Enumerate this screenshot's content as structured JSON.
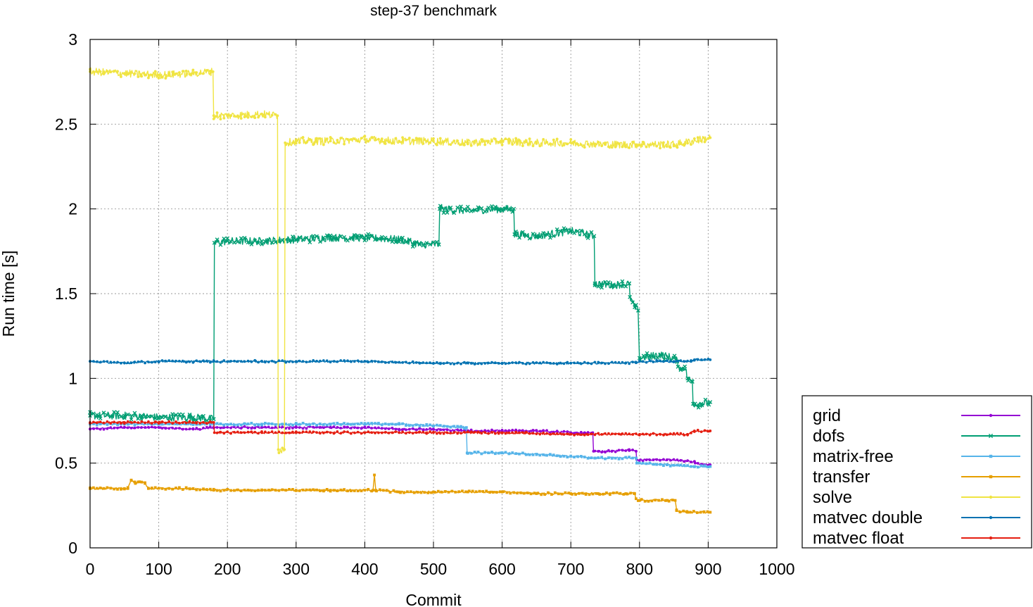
{
  "chart_data": {
    "type": "line",
    "title": "step-37 benchmark",
    "xlabel": "Commit",
    "ylabel": "Run time [s]",
    "xlim": [
      0,
      1000
    ],
    "ylim": [
      0,
      3
    ],
    "x_ticks": [
      "0",
      "100",
      "200",
      "300",
      "400",
      "500",
      "600",
      "700",
      "800",
      "900",
      "1000"
    ],
    "y_ticks": [
      "0",
      "0.5",
      "1",
      "1.5",
      "2",
      "2.5",
      "3"
    ],
    "grid": true,
    "legend_position": "bottom-right-outside",
    "series": [
      {
        "name": "grid",
        "color": "#9400d3",
        "marker": "dot",
        "points": [
          [
            0,
            0.7
          ],
          [
            50,
            0.71
          ],
          [
            100,
            0.71
          ],
          [
            150,
            0.7
          ],
          [
            180,
            0.71
          ],
          [
            250,
            0.71
          ],
          [
            300,
            0.71
          ],
          [
            350,
            0.71
          ],
          [
            400,
            0.71
          ],
          [
            450,
            0.7
          ],
          [
            500,
            0.7
          ],
          [
            550,
            0.69
          ],
          [
            600,
            0.69
          ],
          [
            650,
            0.69
          ],
          [
            700,
            0.68
          ],
          [
            732,
            0.68
          ],
          [
            733,
            0.57
          ],
          [
            760,
            0.57
          ],
          [
            785,
            0.58
          ],
          [
            795,
            0.57
          ],
          [
            796,
            0.52
          ],
          [
            840,
            0.52
          ],
          [
            880,
            0.51
          ],
          [
            881,
            0.5
          ],
          [
            895,
            0.49
          ],
          [
            903,
            0.49
          ]
        ]
      },
      {
        "name": "dofs",
        "color": "#009e73",
        "marker": "x",
        "points": [
          [
            0,
            0.78
          ],
          [
            50,
            0.78
          ],
          [
            100,
            0.77
          ],
          [
            150,
            0.77
          ],
          [
            180,
            0.76
          ],
          [
            181,
            1.8
          ],
          [
            200,
            1.81
          ],
          [
            250,
            1.81
          ],
          [
            300,
            1.82
          ],
          [
            350,
            1.83
          ],
          [
            400,
            1.83
          ],
          [
            450,
            1.82
          ],
          [
            480,
            1.79
          ],
          [
            508,
            1.79
          ],
          [
            509,
            2.0
          ],
          [
            550,
            1.99
          ],
          [
            600,
            2.0
          ],
          [
            617,
            2.0
          ],
          [
            618,
            1.85
          ],
          [
            650,
            1.84
          ],
          [
            700,
            1.87
          ],
          [
            734,
            1.84
          ],
          [
            735,
            1.56
          ],
          [
            760,
            1.55
          ],
          [
            785,
            1.56
          ],
          [
            786,
            1.48
          ],
          [
            793,
            1.42
          ],
          [
            798,
            1.4
          ],
          [
            800,
            1.12
          ],
          [
            830,
            1.14
          ],
          [
            850,
            1.12
          ],
          [
            855,
            1.1
          ],
          [
            860,
            1.05
          ],
          [
            866,
            1.07
          ],
          [
            870,
            1.0
          ],
          [
            877,
            0.98
          ],
          [
            878,
            0.85
          ],
          [
            890,
            0.85
          ],
          [
            903,
            0.86
          ]
        ]
      },
      {
        "name": "matrix-free",
        "color": "#56b4e9",
        "marker": "square",
        "points": [
          [
            0,
            0.73
          ],
          [
            50,
            0.73
          ],
          [
            100,
            0.73
          ],
          [
            150,
            0.73
          ],
          [
            180,
            0.73
          ],
          [
            250,
            0.73
          ],
          [
            300,
            0.73
          ],
          [
            350,
            0.73
          ],
          [
            400,
            0.73
          ],
          [
            450,
            0.73
          ],
          [
            500,
            0.72
          ],
          [
            548,
            0.71
          ],
          [
            549,
            0.56
          ],
          [
            600,
            0.56
          ],
          [
            650,
            0.55
          ],
          [
            700,
            0.54
          ],
          [
            735,
            0.53
          ],
          [
            760,
            0.53
          ],
          [
            795,
            0.53
          ],
          [
            796,
            0.5
          ],
          [
            840,
            0.49
          ],
          [
            880,
            0.48
          ],
          [
            903,
            0.48
          ]
        ]
      },
      {
        "name": "transfer",
        "color": "#e69f00",
        "marker": "square",
        "points": [
          [
            0,
            0.35
          ],
          [
            50,
            0.35
          ],
          [
            55,
            0.35
          ],
          [
            60,
            0.4
          ],
          [
            66,
            0.38
          ],
          [
            72,
            0.39
          ],
          [
            80,
            0.38
          ],
          [
            85,
            0.35
          ],
          [
            150,
            0.35
          ],
          [
            180,
            0.34
          ],
          [
            250,
            0.34
          ],
          [
            300,
            0.34
          ],
          [
            350,
            0.34
          ],
          [
            412,
            0.34
          ],
          [
            414,
            0.43
          ],
          [
            416,
            0.34
          ],
          [
            450,
            0.33
          ],
          [
            500,
            0.33
          ],
          [
            550,
            0.33
          ],
          [
            600,
            0.33
          ],
          [
            650,
            0.32
          ],
          [
            700,
            0.32
          ],
          [
            740,
            0.32
          ],
          [
            780,
            0.32
          ],
          [
            793,
            0.32
          ],
          [
            795,
            0.29
          ],
          [
            800,
            0.28
          ],
          [
            840,
            0.28
          ],
          [
            852,
            0.28
          ],
          [
            854,
            0.22
          ],
          [
            870,
            0.21
          ],
          [
            903,
            0.21
          ]
        ]
      },
      {
        "name": "solve",
        "color": "#f0e442",
        "marker": "dot",
        "points": [
          [
            0,
            2.81
          ],
          [
            50,
            2.8
          ],
          [
            100,
            2.79
          ],
          [
            150,
            2.8
          ],
          [
            179,
            2.81
          ],
          [
            180,
            2.55
          ],
          [
            200,
            2.55
          ],
          [
            250,
            2.56
          ],
          [
            273,
            2.55
          ],
          [
            274,
            0.58
          ],
          [
            283,
            0.58
          ],
          [
            284,
            2.39
          ],
          [
            300,
            2.4
          ],
          [
            350,
            2.4
          ],
          [
            400,
            2.41
          ],
          [
            450,
            2.4
          ],
          [
            500,
            2.4
          ],
          [
            550,
            2.39
          ],
          [
            600,
            2.4
          ],
          [
            650,
            2.39
          ],
          [
            700,
            2.39
          ],
          [
            750,
            2.38
          ],
          [
            800,
            2.38
          ],
          [
            850,
            2.38
          ],
          [
            903,
            2.42
          ]
        ]
      },
      {
        "name": "matvec double",
        "color": "#0072b2",
        "marker": "dot",
        "points": [
          [
            0,
            1.1
          ],
          [
            50,
            1.09
          ],
          [
            100,
            1.1
          ],
          [
            180,
            1.1
          ],
          [
            250,
            1.1
          ],
          [
            300,
            1.1
          ],
          [
            400,
            1.1
          ],
          [
            500,
            1.09
          ],
          [
            600,
            1.09
          ],
          [
            700,
            1.09
          ],
          [
            780,
            1.09
          ],
          [
            800,
            1.1
          ],
          [
            850,
            1.1
          ],
          [
            875,
            1.1
          ],
          [
            880,
            1.11
          ],
          [
            903,
            1.11
          ]
        ]
      },
      {
        "name": "matvec float",
        "color": "#e51e10",
        "marker": "dot",
        "points": [
          [
            0,
            0.74
          ],
          [
            50,
            0.74
          ],
          [
            100,
            0.74
          ],
          [
            150,
            0.74
          ],
          [
            180,
            0.74
          ],
          [
            181,
            0.68
          ],
          [
            250,
            0.68
          ],
          [
            300,
            0.68
          ],
          [
            400,
            0.68
          ],
          [
            500,
            0.68
          ],
          [
            600,
            0.68
          ],
          [
            700,
            0.67
          ],
          [
            800,
            0.67
          ],
          [
            870,
            0.67
          ],
          [
            880,
            0.69
          ],
          [
            903,
            0.69
          ]
        ]
      }
    ]
  }
}
